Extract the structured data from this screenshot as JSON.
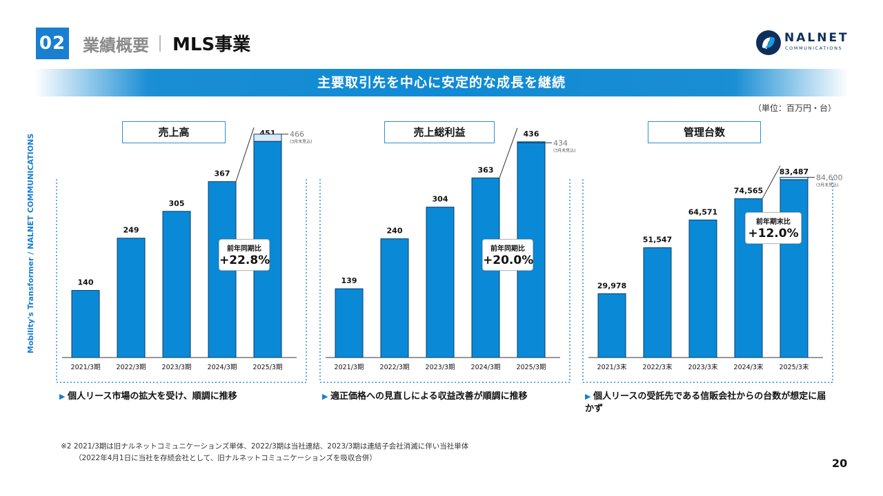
{
  "header": {
    "section_number": "02",
    "section_label": "業績概要",
    "page_title": "MLS事業",
    "logo_text": "NALNET",
    "logo_subtext": "COMMUNICATIONS"
  },
  "banner": {
    "text": "主要取引先を中心に安定的な成長を継続"
  },
  "unit_note": "（単位：百万円・台）",
  "side_text": "Mobility's Transformer / NALNET COMMUNICATIONS",
  "chart_data": [
    {
      "type": "bar",
      "title": "売上高",
      "categories": [
        "2021/3期",
        "2022/3期",
        "2023/3期",
        "2024/3期",
        "2025/3期"
      ],
      "values": [
        140,
        249,
        305,
        367,
        451
      ],
      "value_labels": [
        "140",
        "249",
        "305",
        "367",
        "451"
      ],
      "forecast": {
        "value": 466,
        "label": "466",
        "note": "(3月末見込)"
      },
      "growth": {
        "label": "前年同期比",
        "value": "+22.8%"
      },
      "ylim": [
        0,
        480
      ]
    },
    {
      "type": "bar",
      "title": "売上総利益",
      "categories": [
        "2021/3期",
        "2022/3期",
        "2023/3期",
        "2024/3期",
        "2025/3期"
      ],
      "values": [
        139,
        240,
        304,
        363,
        436
      ],
      "value_labels": [
        "139",
        "240",
        "304",
        "363",
        "436"
      ],
      "forecast": {
        "value": 434,
        "label": "434",
        "note": "(3月末見込)"
      },
      "growth": {
        "label": "前年同期比",
        "value": "+20.0%"
      },
      "ylim": [
        0,
        465
      ]
    },
    {
      "type": "bar",
      "title": "管理台数",
      "categories": [
        "2021/3末",
        "2022/3末",
        "2023/3末",
        "2024/3末",
        "2025/3末"
      ],
      "values": [
        29978,
        51547,
        64571,
        74565,
        83487
      ],
      "value_labels": [
        "29,978",
        "51,547",
        "64,571",
        "74,565",
        "83,487"
      ],
      "forecast": {
        "value": 84600,
        "label": "84,600",
        "note": "(3月末見込)"
      },
      "growth": {
        "label": "前年期末比",
        "value": "+12.0%"
      },
      "ylim": [
        0,
        108000
      ]
    }
  ],
  "captions": [
    "個人リース市場の拡大を受け、順調に推移",
    "適正価格への見直しによる収益改善が順調に推移",
    "個人リースの受託先である信販会社からの台数が想定に届かず"
  ],
  "footnote": {
    "line1": "※2 2021/3期は旧ナルネットコミュニケーションズ単体、2022/3期は当社連結、2023/3期は連結子会社消滅に伴い当社単体",
    "line2": "（2022年4月1日に当社を存続会社として、旧ナルネットコミュニケーションズを吸収合併）"
  },
  "page_number": "20",
  "colors": {
    "accent": "#1a7fd0",
    "bar": "#0a8ad6",
    "forecast": "#dbe8f6",
    "logo": "#0d2f5a"
  }
}
